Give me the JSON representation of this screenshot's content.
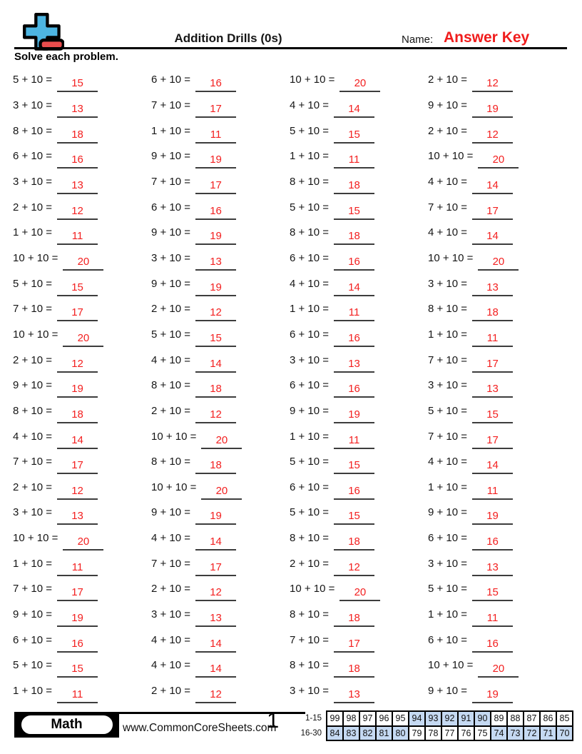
{
  "header": {
    "title": "Addition Drills (0s)",
    "name_label": "Name:",
    "name_value": "Answer Key",
    "instructions": "Solve each problem."
  },
  "colors": {
    "answer_red": "#f32020",
    "answer_key_red": "#f01c1c",
    "logo_blue": "#4db5e2",
    "logo_red": "#e84d4d",
    "highlight_blue": "#c5d9f2"
  },
  "problems": {
    "columns": [
      {
        "items": [
          {
            "expr": "5 + 10 =",
            "answer": "15"
          },
          {
            "expr": "3 + 10 =",
            "answer": "13"
          },
          {
            "expr": "8 + 10 =",
            "answer": "18"
          },
          {
            "expr": "6 + 10 =",
            "answer": "16"
          },
          {
            "expr": "3 + 10 =",
            "answer": "13"
          },
          {
            "expr": "2 + 10 =",
            "answer": "12"
          },
          {
            "expr": "1 + 10 =",
            "answer": "11"
          },
          {
            "expr": "10 + 10 =",
            "answer": "20"
          },
          {
            "expr": "5 + 10 =",
            "answer": "15"
          },
          {
            "expr": "7 + 10 =",
            "answer": "17"
          },
          {
            "expr": "10 + 10 =",
            "answer": "20"
          },
          {
            "expr": "2 + 10 =",
            "answer": "12"
          },
          {
            "expr": "9 + 10 =",
            "answer": "19"
          },
          {
            "expr": "8 + 10 =",
            "answer": "18"
          },
          {
            "expr": "4 + 10 =",
            "answer": "14"
          },
          {
            "expr": "7 + 10 =",
            "answer": "17"
          },
          {
            "expr": "2 + 10 =",
            "answer": "12"
          },
          {
            "expr": "3 + 10 =",
            "answer": "13"
          },
          {
            "expr": "10 + 10 =",
            "answer": "20"
          },
          {
            "expr": "1 + 10 =",
            "answer": "11"
          },
          {
            "expr": "7 + 10 =",
            "answer": "17"
          },
          {
            "expr": "9 + 10 =",
            "answer": "19"
          },
          {
            "expr": "6 + 10 =",
            "answer": "16"
          },
          {
            "expr": "5 + 10 =",
            "answer": "15"
          },
          {
            "expr": "1 + 10 =",
            "answer": "11"
          }
        ]
      },
      {
        "items": [
          {
            "expr": "6 + 10 =",
            "answer": "16"
          },
          {
            "expr": "7 + 10 =",
            "answer": "17"
          },
          {
            "expr": "1 + 10 =",
            "answer": "11"
          },
          {
            "expr": "9 + 10 =",
            "answer": "19"
          },
          {
            "expr": "7 + 10 =",
            "answer": "17"
          },
          {
            "expr": "6 + 10 =",
            "answer": "16"
          },
          {
            "expr": "9 + 10 =",
            "answer": "19"
          },
          {
            "expr": "3 + 10 =",
            "answer": "13"
          },
          {
            "expr": "9 + 10 =",
            "answer": "19"
          },
          {
            "expr": "2 + 10 =",
            "answer": "12"
          },
          {
            "expr": "5 + 10 =",
            "answer": "15"
          },
          {
            "expr": "4 + 10 =",
            "answer": "14"
          },
          {
            "expr": "8 + 10 =",
            "answer": "18"
          },
          {
            "expr": "2 + 10 =",
            "answer": "12"
          },
          {
            "expr": "10 + 10 =",
            "answer": "20"
          },
          {
            "expr": "8 + 10 =",
            "answer": "18"
          },
          {
            "expr": "10 + 10 =",
            "answer": "20"
          },
          {
            "expr": "9 + 10 =",
            "answer": "19"
          },
          {
            "expr": "4 + 10 =",
            "answer": "14"
          },
          {
            "expr": "7 + 10 =",
            "answer": "17"
          },
          {
            "expr": "2 + 10 =",
            "answer": "12"
          },
          {
            "expr": "3 + 10 =",
            "answer": "13"
          },
          {
            "expr": "4 + 10 =",
            "answer": "14"
          },
          {
            "expr": "4 + 10 =",
            "answer": "14"
          },
          {
            "expr": "2 + 10 =",
            "answer": "12"
          }
        ]
      },
      {
        "items": [
          {
            "expr": "10 + 10 =",
            "answer": "20"
          },
          {
            "expr": "4 + 10 =",
            "answer": "14"
          },
          {
            "expr": "5 + 10 =",
            "answer": "15"
          },
          {
            "expr": "1 + 10 =",
            "answer": "11"
          },
          {
            "expr": "8 + 10 =",
            "answer": "18"
          },
          {
            "expr": "5 + 10 =",
            "answer": "15"
          },
          {
            "expr": "8 + 10 =",
            "answer": "18"
          },
          {
            "expr": "6 + 10 =",
            "answer": "16"
          },
          {
            "expr": "4 + 10 =",
            "answer": "14"
          },
          {
            "expr": "1 + 10 =",
            "answer": "11"
          },
          {
            "expr": "6 + 10 =",
            "answer": "16"
          },
          {
            "expr": "3 + 10 =",
            "answer": "13"
          },
          {
            "expr": "6 + 10 =",
            "answer": "16"
          },
          {
            "expr": "9 + 10 =",
            "answer": "19"
          },
          {
            "expr": "1 + 10 =",
            "answer": "11"
          },
          {
            "expr": "5 + 10 =",
            "answer": "15"
          },
          {
            "expr": "6 + 10 =",
            "answer": "16"
          },
          {
            "expr": "5 + 10 =",
            "answer": "15"
          },
          {
            "expr": "8 + 10 =",
            "answer": "18"
          },
          {
            "expr": "2 + 10 =",
            "answer": "12"
          },
          {
            "expr": "10 + 10 =",
            "answer": "20"
          },
          {
            "expr": "8 + 10 =",
            "answer": "18"
          },
          {
            "expr": "7 + 10 =",
            "answer": "17"
          },
          {
            "expr": "8 + 10 =",
            "answer": "18"
          },
          {
            "expr": "3 + 10 =",
            "answer": "13"
          }
        ]
      },
      {
        "items": [
          {
            "expr": "2 + 10 =",
            "answer": "12"
          },
          {
            "expr": "9 + 10 =",
            "answer": "19"
          },
          {
            "expr": "2 + 10 =",
            "answer": "12"
          },
          {
            "expr": "10 + 10 =",
            "answer": "20"
          },
          {
            "expr": "4 + 10 =",
            "answer": "14"
          },
          {
            "expr": "7 + 10 =",
            "answer": "17"
          },
          {
            "expr": "4 + 10 =",
            "answer": "14"
          },
          {
            "expr": "10 + 10 =",
            "answer": "20"
          },
          {
            "expr": "3 + 10 =",
            "answer": "13"
          },
          {
            "expr": "8 + 10 =",
            "answer": "18"
          },
          {
            "expr": "1 + 10 =",
            "answer": "11"
          },
          {
            "expr": "7 + 10 =",
            "answer": "17"
          },
          {
            "expr": "3 + 10 =",
            "answer": "13"
          },
          {
            "expr": "5 + 10 =",
            "answer": "15"
          },
          {
            "expr": "7 + 10 =",
            "answer": "17"
          },
          {
            "expr": "4 + 10 =",
            "answer": "14"
          },
          {
            "expr": "1 + 10 =",
            "answer": "11"
          },
          {
            "expr": "9 + 10 =",
            "answer": "19"
          },
          {
            "expr": "6 + 10 =",
            "answer": "16"
          },
          {
            "expr": "3 + 10 =",
            "answer": "13"
          },
          {
            "expr": "5 + 10 =",
            "answer": "15"
          },
          {
            "expr": "1 + 10 =",
            "answer": "11"
          },
          {
            "expr": "6 + 10 =",
            "answer": "16"
          },
          {
            "expr": "10 + 10 =",
            "answer": "20"
          },
          {
            "expr": "9 + 10 =",
            "answer": "19"
          }
        ]
      }
    ]
  },
  "footer": {
    "subject": "Math",
    "website": "www.CommonCoreSheets.com",
    "page_number": "1",
    "score_table": {
      "rows": [
        {
          "label": "1-15",
          "cells": [
            "99",
            "98",
            "97",
            "96",
            "95",
            "94",
            "93",
            "92",
            "91",
            "90",
            "89",
            "88",
            "87",
            "86",
            "85"
          ],
          "highlighted": [
            false,
            false,
            false,
            false,
            false,
            true,
            true,
            true,
            true,
            true,
            false,
            false,
            false,
            false,
            false
          ]
        },
        {
          "label": "16-30",
          "cells": [
            "84",
            "83",
            "82",
            "81",
            "80",
            "79",
            "78",
            "77",
            "76",
            "75",
            "74",
            "73",
            "72",
            "71",
            "70"
          ],
          "highlighted": [
            true,
            true,
            true,
            true,
            true,
            false,
            false,
            false,
            false,
            false,
            true,
            true,
            true,
            true,
            true
          ]
        }
      ]
    }
  }
}
